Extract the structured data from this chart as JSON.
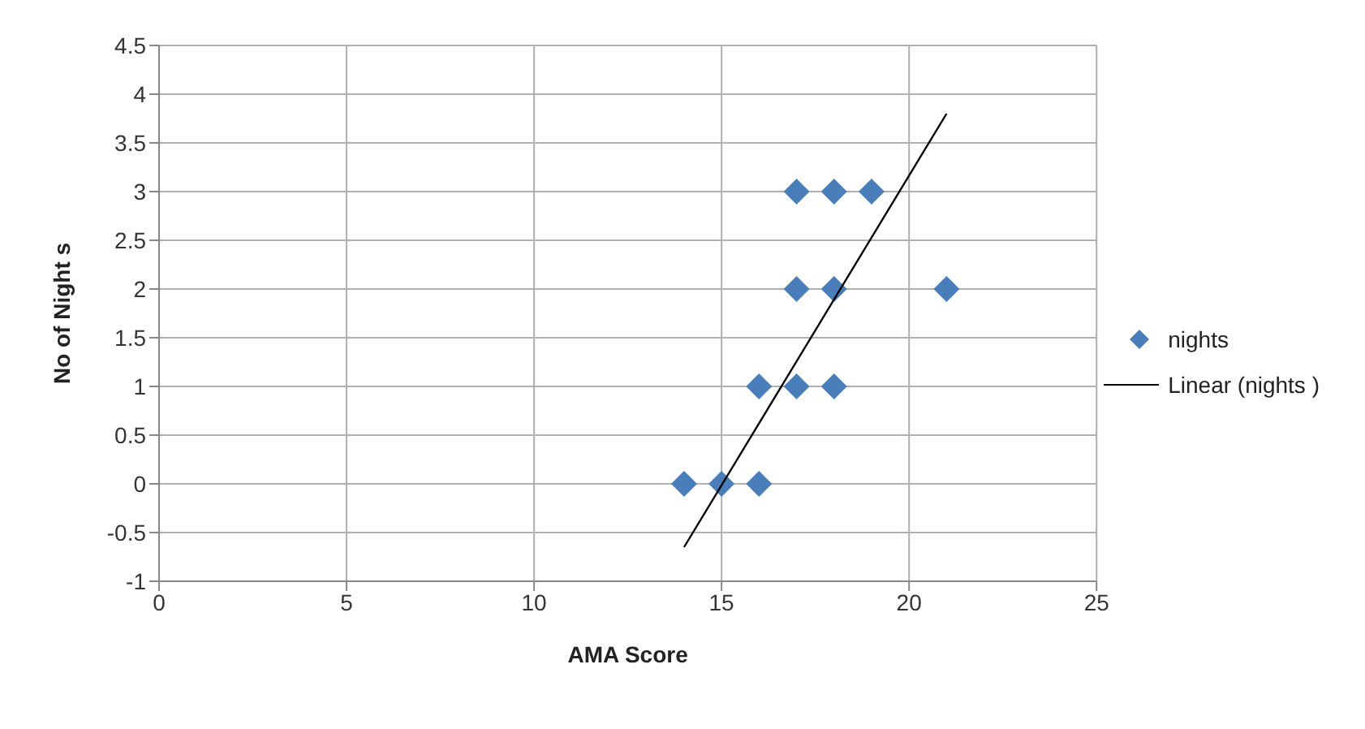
{
  "chart_data": {
    "type": "scatter",
    "xlabel": "AMA Score",
    "ylabel": "No of Night s",
    "xlim": [
      0,
      25
    ],
    "xticks": [
      0,
      5,
      10,
      15,
      20,
      25
    ],
    "ylim": [
      -1,
      4.5
    ],
    "yticks": [
      -1,
      -0.5,
      0,
      0.5,
      1,
      1.5,
      2,
      2.5,
      3,
      3.5,
      4,
      4.5
    ],
    "grid": true,
    "legend": "right",
    "series": [
      {
        "name": "nights",
        "marker": "diamond",
        "color": "#4a7ebb",
        "x": [
          14,
          15,
          16,
          16,
          17,
          18,
          17,
          18,
          21,
          17,
          18,
          19
        ],
        "values": [
          0,
          0,
          0,
          1,
          1,
          1,
          2,
          2,
          2,
          3,
          3,
          3
        ]
      },
      {
        "name": "Linear (nights )",
        "type": "line",
        "marker": "none",
        "color": "#000000",
        "x": [
          14,
          21
        ],
        "values": [
          -0.65,
          3.8
        ]
      }
    ]
  }
}
